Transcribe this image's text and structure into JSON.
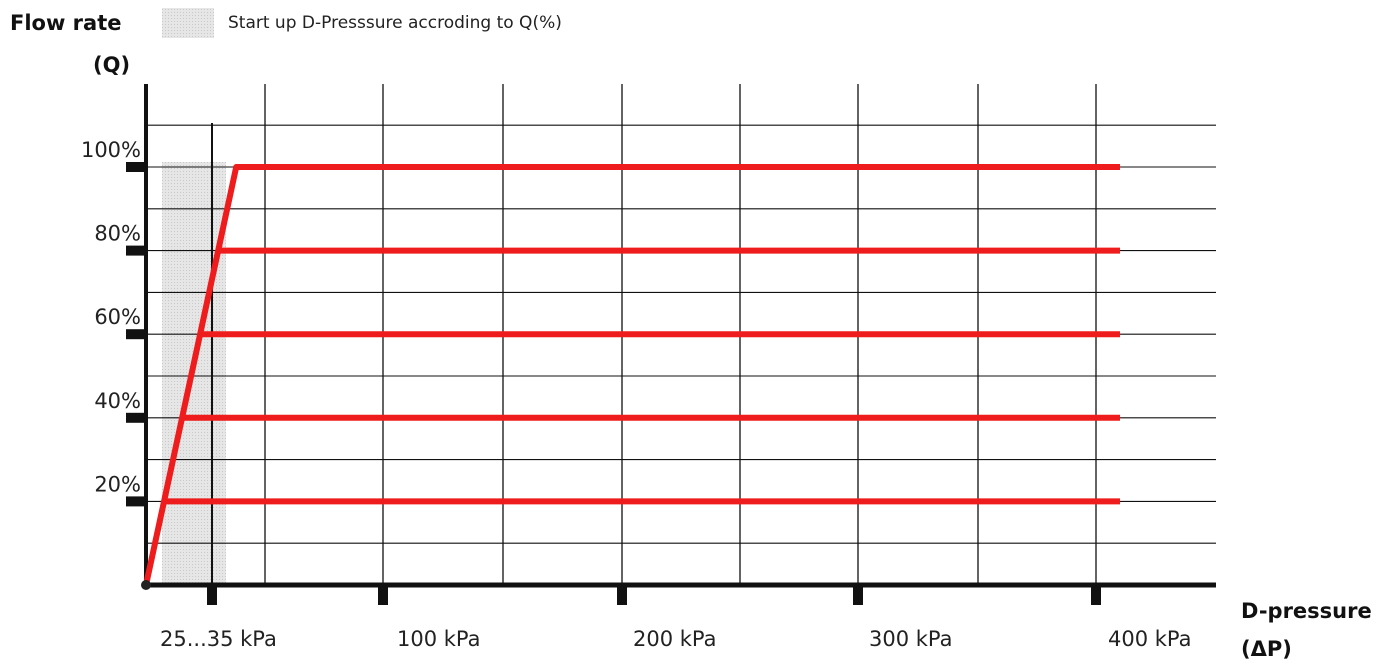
{
  "chart_data": {
    "type": "line",
    "ylabel": "Flow rate",
    "ylabel_symbol": "(Q)",
    "xlabel": "D-pressure",
    "xlabel_symbol": "(ΔP)",
    "legend": {
      "label": "Start up D-Presssure accroding to Q(%)",
      "placement": "top",
      "swatch_color": "#dcdcdc"
    },
    "shaded_band": {
      "x": [
        25,
        35
      ],
      "label": "25...35 kPa"
    },
    "x_ticks": [
      {
        "value": 30,
        "label": "25...35 kPa"
      },
      {
        "value": 100,
        "label": "100 kPa"
      },
      {
        "value": 200,
        "label": "200 kPa"
      },
      {
        "value": 300,
        "label": "300 kPa"
      },
      {
        "value": 400,
        "label": "400 kPa"
      }
    ],
    "y_ticks": [
      {
        "value": 20,
        "label": "20%"
      },
      {
        "value": 40,
        "label": "40%"
      },
      {
        "value": 60,
        "label": "60%"
      },
      {
        "value": 80,
        "label": "80%"
      },
      {
        "value": 100,
        "label": "100%"
      }
    ],
    "xlim": [
      0,
      450
    ],
    "ylim": [
      0,
      120
    ],
    "grid": true,
    "line_color": "#ee1c1c",
    "startup_curve": [
      {
        "x": 0,
        "y": 0
      },
      {
        "x": 35,
        "y": 100
      }
    ],
    "series": [
      {
        "values": [
          {
            "x": 7,
            "y": 20
          },
          {
            "x": 410,
            "y": 20
          }
        ]
      },
      {
        "values": [
          {
            "x": 14,
            "y": 40
          },
          {
            "x": 410,
            "y": 40
          }
        ]
      },
      {
        "values": [
          {
            "x": 21,
            "y": 60
          },
          {
            "x": 410,
            "y": 60
          }
        ]
      },
      {
        "values": [
          {
            "x": 28,
            "y": 80
          },
          {
            "x": 410,
            "y": 80
          }
        ]
      },
      {
        "values": [
          {
            "x": 35,
            "y": 100
          },
          {
            "x": 410,
            "y": 100
          }
        ]
      }
    ]
  }
}
